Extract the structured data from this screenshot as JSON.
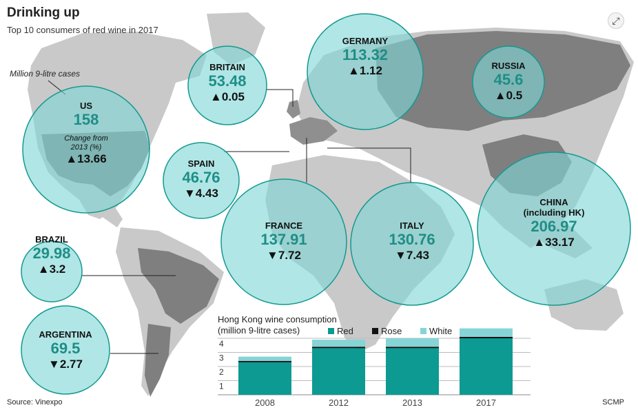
{
  "header": {
    "title": "Drinking up",
    "subtitle": "Top 10 consumers of red wine in 2017",
    "unit_note": "Million 9-litre cases"
  },
  "footer": {
    "source": "Source: Vinexpo",
    "credit": "SCMP"
  },
  "colors": {
    "bubble_fill": "#7fd6d6",
    "bubble_stroke": "#13998f",
    "value_text": "#1e8e86",
    "red": "#0c9a92",
    "rose": "#111111",
    "white": "#86d4d6",
    "land_light": "#cbcbcb",
    "land_dark": "#8a8a8a"
  },
  "icons": {
    "expand": "expand-icon",
    "up": "triangle-up-icon",
    "down": "triangle-down-icon"
  },
  "chart_data": [
    {
      "type": "bubble-map",
      "title": "Drinking up",
      "subtitle": "Top 10 consumers of red wine in 2017",
      "unit": "Million 9-litre cases",
      "change_note": "Change from 2013 (%)",
      "countries": [
        {
          "name": "US",
          "value": "158",
          "change": "13.66",
          "direction": "up"
        },
        {
          "name": "BRITAIN",
          "value": "53.48",
          "change": "0.05",
          "direction": "up"
        },
        {
          "name": "GERMANY",
          "value": "113.32",
          "change": "1.12",
          "direction": "up"
        },
        {
          "name": "RUSSIA",
          "value": "45.6",
          "change": "0.5",
          "direction": "up"
        },
        {
          "name": "SPAIN",
          "value": "46.76",
          "change": "4.43",
          "direction": "down"
        },
        {
          "name": "FRANCE",
          "value": "137.91",
          "change": "7.72",
          "direction": "down"
        },
        {
          "name": "ITALY",
          "value": "130.76",
          "change": "7.43",
          "direction": "down"
        },
        {
          "name": "CHINA",
          "subname": "(including HK)",
          "value": "206.97",
          "change": "33.17",
          "direction": "up"
        },
        {
          "name": "BRAZIL",
          "value": "29.98",
          "change": "3.2",
          "direction": "up"
        },
        {
          "name": "ARGENTINA",
          "value": "69.5",
          "change": "2.77",
          "direction": "down"
        }
      ]
    },
    {
      "type": "bar",
      "stacked": true,
      "title": "Hong Kong wine consumption",
      "subtitle": "(million 9-litre cases)",
      "categories": [
        "2008",
        "2012",
        "2013",
        "2017"
      ],
      "series": [
        {
          "name": "Red",
          "values": [
            2.3,
            3.3,
            3.3,
            4.0
          ]
        },
        {
          "name": "Rose",
          "values": [
            0.1,
            0.1,
            0.1,
            0.1
          ]
        },
        {
          "name": "White",
          "values": [
            0.3,
            0.5,
            0.6,
            0.6
          ]
        }
      ],
      "yticks": [
        "1",
        "2",
        "3",
        "4"
      ],
      "ylim": [
        0,
        4.8
      ],
      "grid": true,
      "legend": "top"
    }
  ]
}
